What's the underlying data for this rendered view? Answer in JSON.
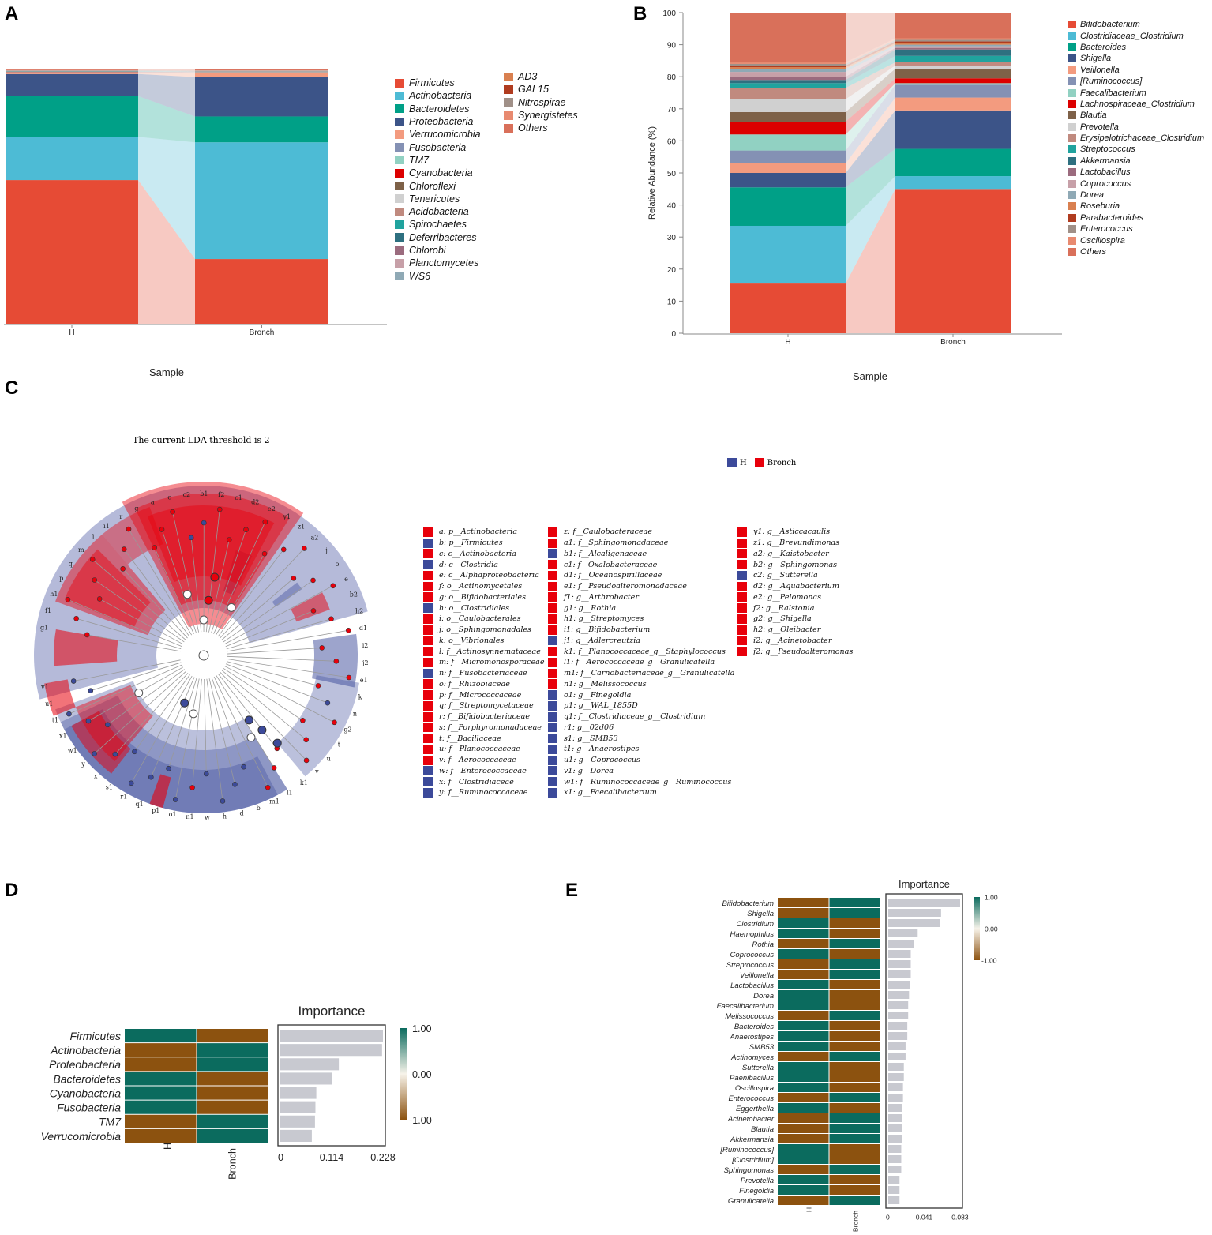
{
  "panels": {
    "a": "A",
    "b": "B",
    "c": "C",
    "d": "D",
    "e": "E"
  },
  "chart_data": [
    {
      "id": "A",
      "type": "bar",
      "stacked": true,
      "xlabel": "Sample",
      "ylabel": "",
      "categories": [
        "H",
        "Bronch"
      ],
      "series": [
        {
          "name": "Firmicutes",
          "color": "#e64b35",
          "values": [
            56.5,
            25.5
          ]
        },
        {
          "name": "Actinobacteria",
          "color": "#4dbbd5",
          "values": [
            17,
            46
          ]
        },
        {
          "name": "Bacteroidetes",
          "color": "#00a087",
          "values": [
            16,
            10.2
          ]
        },
        {
          "name": "Proteobacteria",
          "color": "#3c5488",
          "values": [
            8.7,
            15.5
          ]
        },
        {
          "name": "Verrucomicrobia",
          "color": "#f39b7f",
          "values": [
            0.3,
            1.5
          ]
        },
        {
          "name": "Fusobacteria",
          "color": "#8491b4",
          "values": [
            0.2,
            0.3
          ]
        },
        {
          "name": "TM7",
          "color": "#91d1c2",
          "values": [
            0.1,
            0.2
          ]
        },
        {
          "name": "Cyanobacteria",
          "color": "#dc0000",
          "values": [
            0.1,
            0.1
          ]
        },
        {
          "name": "Chloroflexi",
          "color": "#7e6148",
          "values": [
            0.1,
            0.05
          ]
        },
        {
          "name": "Tenericutes",
          "color": "#d0d0d0",
          "values": [
            0.1,
            0.05
          ]
        },
        {
          "name": "Acidobacteria",
          "color": "#c08a7f",
          "values": [
            0.1,
            0.05
          ]
        },
        {
          "name": "Spirochaetes",
          "color": "#20a39e",
          "values": [
            0.1,
            0.05
          ]
        },
        {
          "name": "Deferribacteres",
          "color": "#2e7080",
          "values": [
            0.1,
            0.05
          ]
        },
        {
          "name": "Chlorobi",
          "color": "#9b6b7e",
          "values": [
            0.05,
            0.05
          ]
        },
        {
          "name": "Planctomycetes",
          "color": "#c7a0a8",
          "values": [
            0.05,
            0.05
          ]
        },
        {
          "name": "WS6",
          "color": "#8fa9b5",
          "values": [
            0.05,
            0.05
          ]
        },
        {
          "name": "AD3",
          "color": "#d98050",
          "values": [
            0.05,
            0.05
          ]
        },
        {
          "name": "GAL15",
          "color": "#b03c20",
          "values": [
            0.05,
            0.05
          ]
        },
        {
          "name": "Nitrospirae",
          "color": "#a09088",
          "values": [
            0.05,
            0.05
          ]
        },
        {
          "name": "Synergistetes",
          "color": "#e88a70",
          "values": [
            0.05,
            0.05
          ]
        },
        {
          "name": "Others",
          "color": "#d9705a",
          "values": [
            0.25,
            0.3
          ]
        }
      ]
    },
    {
      "id": "B",
      "type": "bar",
      "stacked": true,
      "xlabel": "Sample",
      "ylabel": "Relative Abundance (%)",
      "ylim": [
        0,
        100
      ],
      "yticks": [
        0,
        10,
        20,
        30,
        40,
        50,
        60,
        70,
        80,
        90,
        100
      ],
      "categories": [
        "H",
        "Bronch"
      ],
      "series": [
        {
          "name": "Bifidobacterium",
          "color": "#e64b35",
          "values": [
            15.5,
            45
          ]
        },
        {
          "name": "Clostridiaceae_Clostridium",
          "color": "#4dbbd5",
          "values": [
            18,
            4
          ]
        },
        {
          "name": "Bacteroides",
          "color": "#00a087",
          "values": [
            12,
            8.5
          ]
        },
        {
          "name": "Shigella",
          "color": "#3c5488",
          "values": [
            4.5,
            12
          ]
        },
        {
          "name": "Veillonella",
          "color": "#f39b7f",
          "values": [
            3,
            4
          ]
        },
        {
          "name": "[Ruminococcus]",
          "color": "#8491b4",
          "values": [
            4,
            4
          ]
        },
        {
          "name": "Faecalibacterium",
          "color": "#91d1c2",
          "values": [
            5,
            0.5
          ]
        },
        {
          "name": "Lachnospiraceae_Clostridium",
          "color": "#dc0000",
          "values": [
            4,
            1.5
          ]
        },
        {
          "name": "Blautia",
          "color": "#7e6148",
          "values": [
            3,
            3
          ]
        },
        {
          "name": "Prevotella",
          "color": "#d0d0d0",
          "values": [
            4,
            1
          ]
        },
        {
          "name": "Erysipelotrichaceae_Clostridium",
          "color": "#c08a7f",
          "values": [
            3.5,
            1
          ]
        },
        {
          "name": "Streptococcus",
          "color": "#20a39e",
          "values": [
            1.5,
            2
          ]
        },
        {
          "name": "Akkermansia",
          "color": "#2e7080",
          "values": [
            1,
            2
          ]
        },
        {
          "name": "Lactobacillus",
          "color": "#9b6b7e",
          "values": [
            1,
            0.5
          ]
        },
        {
          "name": "Coprococcus",
          "color": "#c7a0a8",
          "values": [
            1.5,
            0.5
          ]
        },
        {
          "name": "Dorea",
          "color": "#8fa9b5",
          "values": [
            1,
            0.5
          ]
        },
        {
          "name": "Roseburia",
          "color": "#d98050",
          "values": [
            0.5,
            0.5
          ]
        },
        {
          "name": "Parabacteroides",
          "color": "#b03c20",
          "values": [
            0.5,
            0.5
          ]
        },
        {
          "name": "Enterococcus",
          "color": "#a09088",
          "values": [
            0.5,
            0.5
          ]
        },
        {
          "name": "Oscillospira",
          "color": "#e88a70",
          "values": [
            0.5,
            0.5
          ]
        },
        {
          "name": "Others",
          "color": "#d9705a",
          "values": [
            15.5,
            8
          ]
        }
      ]
    },
    {
      "id": "D",
      "type": "heatmap",
      "title": "Importance",
      "columns": [
        "H",
        "Bronch"
      ],
      "colorbar_ticks": [
        "1.00",
        "0.00",
        "-1.00"
      ],
      "xticks": [
        "0",
        "0.114",
        "0.228"
      ],
      "xlim": [
        0,
        0.228
      ],
      "rows": [
        {
          "name": "Firmicutes",
          "h": 1,
          "bronch": -1,
          "importance": 0.228
        },
        {
          "name": "Actinobacteria",
          "h": -1,
          "bronch": 1,
          "importance": 0.226
        },
        {
          "name": "Proteobacteria",
          "h": -1,
          "bronch": 1,
          "importance": 0.13
        },
        {
          "name": "Bacteroidetes",
          "h": 1,
          "bronch": -1,
          "importance": 0.115
        },
        {
          "name": "Cyanobacteria",
          "h": 1,
          "bronch": -1,
          "importance": 0.08
        },
        {
          "name": "Fusobacteria",
          "h": 1,
          "bronch": -1,
          "importance": 0.078
        },
        {
          "name": "TM7",
          "h": -1,
          "bronch": 1,
          "importance": 0.077
        },
        {
          "name": "Verrucomicrobia",
          "h": -1,
          "bronch": 1,
          "importance": 0.07
        }
      ]
    },
    {
      "id": "E",
      "type": "heatmap",
      "title": "Importance",
      "columns": [
        "H",
        "Bronch"
      ],
      "colorbar_ticks": [
        "1.00",
        "0.00",
        "-1.00"
      ],
      "xticks": [
        "0",
        "0.041",
        "0.083"
      ],
      "xlim": [
        0,
        0.083
      ],
      "rows": [
        {
          "name": "Bifidobacterium",
          "h": -1,
          "bronch": 1,
          "importance": 0.083
        },
        {
          "name": "Shigella",
          "h": -1,
          "bronch": 1,
          "importance": 0.061
        },
        {
          "name": "Clostridium",
          "h": 1,
          "bronch": -1,
          "importance": 0.06
        },
        {
          "name": "Haemophilus",
          "h": 1,
          "bronch": -1,
          "importance": 0.034
        },
        {
          "name": "Rothia",
          "h": -1,
          "bronch": 1,
          "importance": 0.03
        },
        {
          "name": "Coprococcus",
          "h": 1,
          "bronch": -1,
          "importance": 0.026
        },
        {
          "name": "Streptococcus",
          "h": -1,
          "bronch": 1,
          "importance": 0.026
        },
        {
          "name": "Veillonella",
          "h": -1,
          "bronch": 1,
          "importance": 0.026
        },
        {
          "name": "Lactobacillus",
          "h": 1,
          "bronch": -1,
          "importance": 0.025
        },
        {
          "name": "Dorea",
          "h": 1,
          "bronch": -1,
          "importance": 0.024
        },
        {
          "name": "Faecalibacterium",
          "h": 1,
          "bronch": -1,
          "importance": 0.023
        },
        {
          "name": "Melissococcus",
          "h": -1,
          "bronch": 1,
          "importance": 0.023
        },
        {
          "name": "Bacteroides",
          "h": 1,
          "bronch": -1,
          "importance": 0.022
        },
        {
          "name": "Anaerostipes",
          "h": 1,
          "bronch": -1,
          "importance": 0.022
        },
        {
          "name": "SMB53",
          "h": 1,
          "bronch": -1,
          "importance": 0.02
        },
        {
          "name": "Actinomyces",
          "h": -1,
          "bronch": 1,
          "importance": 0.02
        },
        {
          "name": "Sutterella",
          "h": 1,
          "bronch": -1,
          "importance": 0.018
        },
        {
          "name": "Paenibacillus",
          "h": 1,
          "bronch": -1,
          "importance": 0.018
        },
        {
          "name": "Oscillospira",
          "h": 1,
          "bronch": -1,
          "importance": 0.017
        },
        {
          "name": "Enterococcus",
          "h": -1,
          "bronch": 1,
          "importance": 0.017
        },
        {
          "name": "Eggerthella",
          "h": 1,
          "bronch": -1,
          "importance": 0.016
        },
        {
          "name": "Acinetobacter",
          "h": -1,
          "bronch": 1,
          "importance": 0.016
        },
        {
          "name": "Blautia",
          "h": -1,
          "bronch": 1,
          "importance": 0.016
        },
        {
          "name": "Akkermansia",
          "h": -1,
          "bronch": 1,
          "importance": 0.016
        },
        {
          "name": "[Ruminococcus]",
          "h": 1,
          "bronch": -1,
          "importance": 0.015
        },
        {
          "name": "[Clostridium]",
          "h": 1,
          "bronch": -1,
          "importance": 0.015
        },
        {
          "name": "Sphingomonas",
          "h": -1,
          "bronch": 1,
          "importance": 0.015
        },
        {
          "name": "Prevotella",
          "h": 1,
          "bronch": -1,
          "importance": 0.013
        },
        {
          "name": "Finegoldia",
          "h": 1,
          "bronch": -1,
          "importance": 0.013
        },
        {
          "name": "Granulicatella",
          "h": -1,
          "bronch": 1,
          "importance": 0.013
        }
      ]
    }
  ],
  "cladogram": {
    "threshold_text": "The current LDA threshold is 2",
    "groups": [
      {
        "name": "H",
        "color": "#3c4a9a"
      },
      {
        "name": "Bronch",
        "color": "#e8000b"
      }
    ],
    "legend": [
      [
        "a: p__Actinobacteria",
        "Bronch"
      ],
      [
        "b: p__Firmicutes",
        "H"
      ],
      [
        "c: c__Actinobacteria",
        "Bronch"
      ],
      [
        "d: c__Clostridia",
        "H"
      ],
      [
        "e: c__Alphaproteobacteria",
        "Bronch"
      ],
      [
        "f: o__Actinomycetales",
        "Bronch"
      ],
      [
        "g: o__Bifidobacteriales",
        "Bronch"
      ],
      [
        "h: o__Clostridiales",
        "H"
      ],
      [
        "i: o__Caulobacterales",
        "Bronch"
      ],
      [
        "j: o__Sphingomonadales",
        "Bronch"
      ],
      [
        "k: o__Vibrionales",
        "Bronch"
      ],
      [
        "l: f__Actinosynnemataceae",
        "Bronch"
      ],
      [
        "m: f__Micromonosporaceae",
        "Bronch"
      ],
      [
        "n: f__Fusobacteriaceae",
        "H"
      ],
      [
        "o: f__Rhizobiaceae",
        "Bronch"
      ],
      [
        "p: f__Micrococcaceae",
        "Bronch"
      ],
      [
        "q: f__Streptomycetaceae",
        "Bronch"
      ],
      [
        "r: f__Bifidobacteriaceae",
        "Bronch"
      ],
      [
        "s: f__Porphyromonadaceae",
        "Bronch"
      ],
      [
        "t: f__Bacillaceae",
        "Bronch"
      ],
      [
        "u: f__Planococcaceae",
        "Bronch"
      ],
      [
        "v: f__Aerococcaceae",
        "Bronch"
      ],
      [
        "w: f__Enterococcaceae",
        "H"
      ],
      [
        "x: f__Clostridiaceae",
        "H"
      ],
      [
        "y: f__Ruminococcaceae",
        "H"
      ],
      [
        "z: f__Caulobacteraceae",
        "Bronch"
      ],
      [
        "a1: f__Sphingomonadaceae",
        "Bronch"
      ],
      [
        "b1: f__Alcaligenaceae",
        "H"
      ],
      [
        "c1: f__Oxalobacteraceae",
        "Bronch"
      ],
      [
        "d1: f__Oceanospirillaceae",
        "Bronch"
      ],
      [
        "e1: f__Pseudoalteromonadaceae",
        "Bronch"
      ],
      [
        "f1: g__Arthrobacter",
        "Bronch"
      ],
      [
        "g1: g__Rothia",
        "Bronch"
      ],
      [
        "h1: g__Streptomyces",
        "Bronch"
      ],
      [
        "i1: g__Bifidobacterium",
        "Bronch"
      ],
      [
        "j1: g__Adlercreutzia",
        "H"
      ],
      [
        "k1: f__Planococcaceae_g__Staphylococcus",
        "Bronch"
      ],
      [
        "l1: f__Aerococcaceae_g__Granulicatella",
        "Bronch"
      ],
      [
        "m1: f__Carnobacteriaceae_g__Granulicatella",
        "Bronch"
      ],
      [
        "n1: g__Melissococcus",
        "Bronch"
      ],
      [
        "o1: g__Finegoldia",
        "H"
      ],
      [
        "p1: g__WAL_1855D",
        "H"
      ],
      [
        "q1: f__Clostridiaceae_g__Clostridium",
        "H"
      ],
      [
        "r1: g__02d06",
        "H"
      ],
      [
        "s1: g__SMB53",
        "H"
      ],
      [
        "t1: g__Anaerostipes",
        "H"
      ],
      [
        "u1: g__Coprococcus",
        "H"
      ],
      [
        "v1: g__Dorea",
        "H"
      ],
      [
        "w1: f__Ruminococcaceae_g__Ruminococcus",
        "H"
      ],
      [
        "x1: g__Faecalibacterium",
        "H"
      ],
      [
        "y1: g__Asticcacaulis",
        "Bronch"
      ],
      [
        "z1: g__Brevundimonas",
        "Bronch"
      ],
      [
        "a2: g__Kaistobacter",
        "Bronch"
      ],
      [
        "b2: g__Sphingomonas",
        "Bronch"
      ],
      [
        "c2: g__Sutterella",
        "H"
      ],
      [
        "d2: g__Aquabacterium",
        "Bronch"
      ],
      [
        "e2: g__Pelomonas",
        "Bronch"
      ],
      [
        "f2: g__Ralstonia",
        "Bronch"
      ],
      [
        "g2: g__Shigella",
        "Bronch"
      ],
      [
        "h2: g__Oleibacter",
        "Bronch"
      ],
      [
        "i2: g__Acinetobacter",
        "Bronch"
      ],
      [
        "j2: g__Pseudoalteromonas",
        "Bronch"
      ]
    ],
    "node_labels": [
      "g1",
      "f1",
      "h1",
      "p",
      "q",
      "m",
      "l",
      "i1",
      "r",
      "g",
      "a",
      "c",
      "c2",
      "b1",
      "f2",
      "c1",
      "d2",
      "e2",
      "y1",
      "z1",
      "a2",
      "j",
      "o",
      "e",
      "b2",
      "h2",
      "d1",
      "i2",
      "j2",
      "e1",
      "k",
      "n",
      "g2",
      "t",
      "u",
      "v",
      "k1",
      "l1",
      "m1",
      "b",
      "d",
      "h",
      "w",
      "n1",
      "o1",
      "p1",
      "q1",
      "r1",
      "s1",
      "x",
      "y",
      "w1",
      "x1",
      "t1",
      "u1",
      "v1"
    ]
  }
}
